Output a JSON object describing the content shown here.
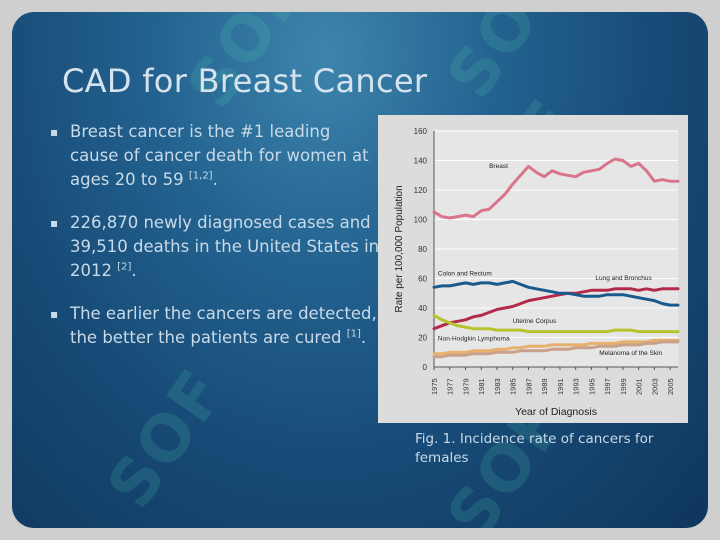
{
  "slide": {
    "title": "CAD for Breast Cancer",
    "bullets": [
      {
        "text": "Breast cancer is the #1 leading cause of cancer death for women at ages 20 to 59 ",
        "ref": "[1,2]",
        "tail": "."
      },
      {
        "text": "226,870 newly diagnosed cases and 39,510 deaths in the United States in 2012 ",
        "ref": "[2]",
        "tail": "."
      },
      {
        "text": "The earlier the cancers are detected, the better the patients are cured ",
        "ref": "[1]",
        "tail": "."
      }
    ],
    "caption": "Fig. 1. Incidence rate of cancers for females",
    "bullet_glyph": "▪"
  },
  "watermark": {
    "text": "SOF"
  },
  "chart_data": {
    "type": "line",
    "xlabel": "Year of Diagnosis",
    "ylabel": "Rate per 100,000 Population",
    "ylim": [
      0,
      160
    ],
    "yticks": [
      0,
      20,
      40,
      60,
      80,
      100,
      120,
      140,
      160
    ],
    "xticks": [
      "1975",
      "1977",
      "1979",
      "1981",
      "1983",
      "1985",
      "1987",
      "1989",
      "1991",
      "1993",
      "1995",
      "1997",
      "1999",
      "2001",
      "2003",
      "2005"
    ],
    "x": [
      1975,
      1976,
      1977,
      1978,
      1979,
      1980,
      1981,
      1982,
      1983,
      1984,
      1985,
      1986,
      1987,
      1988,
      1989,
      1990,
      1991,
      1992,
      1993,
      1994,
      1995,
      1996,
      1997,
      1998,
      1999,
      2000,
      2001,
      2002,
      2003,
      2004,
      2005,
      2006
    ],
    "grid": true,
    "series": [
      {
        "name": "Breast",
        "color": "#d9748a",
        "values": [
          105,
          102,
          101,
          102,
          103,
          102,
          106,
          107,
          112,
          117,
          124,
          130,
          136,
          132,
          129,
          133,
          131,
          130,
          129,
          132,
          133,
          134,
          138,
          141,
          140,
          136,
          138,
          133,
          126,
          127,
          126,
          126
        ]
      },
      {
        "name": "Lung and Bronchus",
        "color": "#b42a4a",
        "values": [
          26,
          28,
          30,
          31,
          32,
          34,
          35,
          37,
          39,
          40,
          41,
          43,
          45,
          46,
          47,
          48,
          49,
          50,
          50,
          51,
          52,
          52,
          52,
          53,
          53,
          53,
          52,
          53,
          52,
          53,
          53,
          53
        ]
      },
      {
        "name": "Colon and Rectum",
        "color": "#1a5b8e",
        "values": [
          54,
          55,
          55,
          56,
          57,
          56,
          57,
          57,
          56,
          57,
          58,
          56,
          54,
          53,
          52,
          51,
          50,
          50,
          49,
          48,
          48,
          48,
          49,
          49,
          49,
          48,
          47,
          46,
          45,
          43,
          42,
          42
        ]
      },
      {
        "name": "Uterine Corpus",
        "color": "#b5c42c",
        "values": [
          35,
          32,
          30,
          28,
          27,
          26,
          26,
          26,
          25,
          25,
          25,
          25,
          24,
          24,
          24,
          24,
          24,
          24,
          24,
          24,
          24,
          24,
          24,
          25,
          25,
          25,
          24,
          24,
          24,
          24,
          24,
          24
        ]
      },
      {
        "name": "Non-Hodgkin Lymphoma",
        "color": "#e7b06c",
        "values": [
          9,
          9,
          10,
          10,
          10,
          11,
          11,
          11,
          12,
          12,
          13,
          13,
          14,
          14,
          14,
          15,
          15,
          15,
          15,
          15,
          16,
          16,
          16,
          16,
          17,
          17,
          17,
          17,
          18,
          18,
          18,
          18
        ]
      },
      {
        "name": "Melanoma of the Skin",
        "color": "#c9a089",
        "values": [
          7,
          7,
          8,
          8,
          8,
          9,
          9,
          9,
          10,
          10,
          10,
          11,
          11,
          11,
          11,
          12,
          12,
          12,
          13,
          13,
          13,
          14,
          14,
          14,
          15,
          15,
          15,
          16,
          16,
          17,
          17,
          17
        ]
      }
    ],
    "labels": [
      {
        "series": "Breast",
        "text": "Breast",
        "at_x": 1982,
        "at_y": 135
      },
      {
        "series": "Colon and Rectum",
        "text": "Colon and Rectum",
        "at_x": 1975.5,
        "at_y": 62
      },
      {
        "series": "Lung and Bronchus",
        "text": "Lung and Bronchus",
        "at_x": 1995.5,
        "at_y": 59
      },
      {
        "series": "Uterine Corpus",
        "text": "Uterine Corpus",
        "at_x": 1985,
        "at_y": 30
      },
      {
        "series": "Non-Hodgkin Lymphoma",
        "text": "Non-Hodgkin Lymphoma",
        "at_x": 1975.5,
        "at_y": 18
      },
      {
        "series": "Melanoma of the Skin",
        "text": "Melanoma of the Skin",
        "at_x": 1996,
        "at_y": 8
      }
    ]
  }
}
